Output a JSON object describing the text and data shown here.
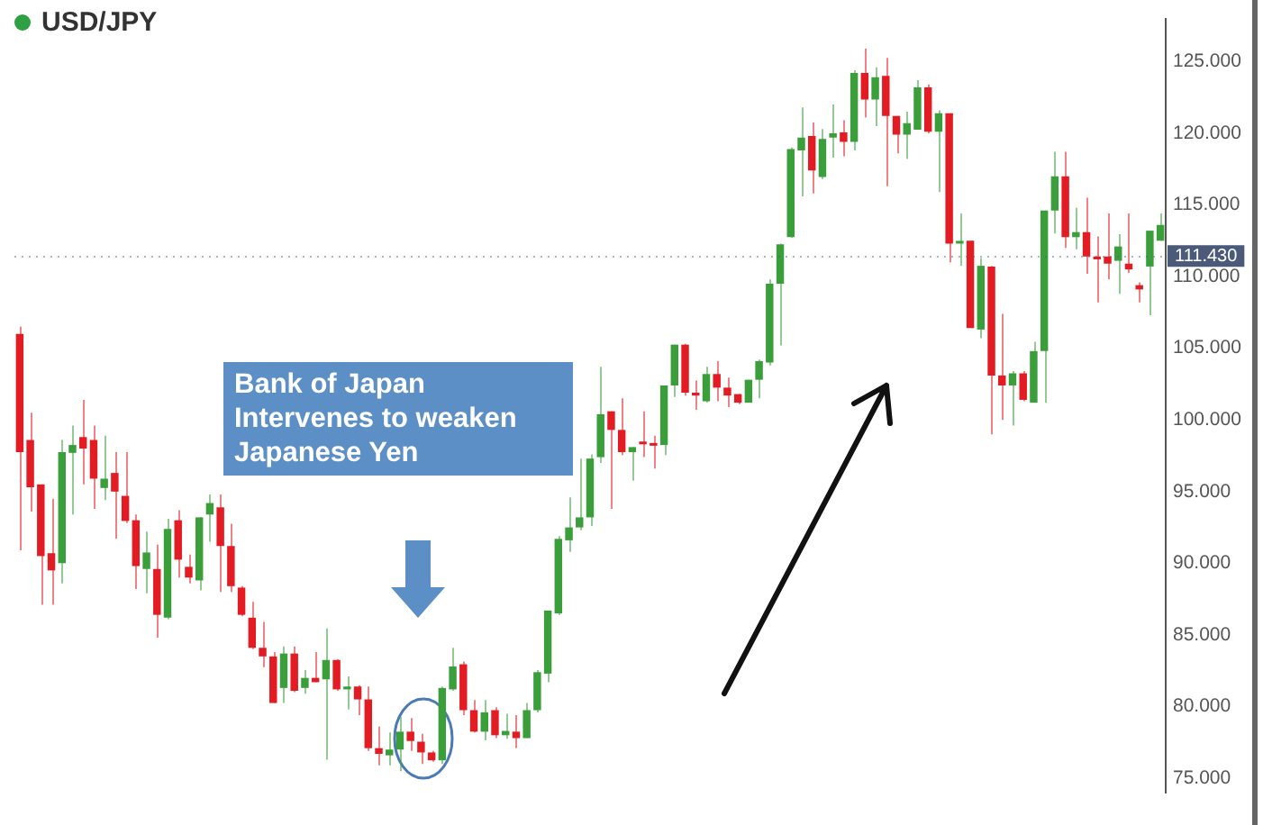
{
  "chart_data": {
    "type": "candlestick",
    "title": "USD/JPY",
    "annotations": [
      "Bank of Japan Intervenes to weaken Japanese Yen"
    ],
    "categories": [
      null,
      null,
      null,
      null,
      null,
      null,
      null,
      null,
      null,
      null,
      null,
      null,
      null,
      null,
      null,
      null,
      null,
      null,
      null,
      null,
      null,
      null,
      null,
      null,
      null,
      null,
      null,
      null,
      null,
      null,
      null,
      null,
      null,
      null,
      null,
      null,
      null,
      null,
      null,
      null,
      null,
      null,
      null,
      null,
      null,
      null,
      null,
      null,
      null,
      null,
      null,
      null,
      null,
      null,
      null,
      null,
      null,
      null,
      null,
      null,
      null,
      null,
      null,
      null,
      null,
      null,
      null,
      null,
      null,
      null,
      null,
      null,
      null,
      null,
      null,
      null,
      null,
      null,
      null,
      null,
      null,
      null,
      null,
      null,
      null,
      null,
      null,
      null,
      null,
      null,
      null,
      null,
      null,
      null,
      null,
      null,
      null,
      null,
      null,
      null,
      null,
      null,
      null,
      null,
      null,
      null,
      null,
      null,
      null
    ],
    "ohlc": [
      [
        106.0,
        106.5,
        90.9,
        97.75
      ],
      [
        98.6,
        100.5,
        93.6,
        95.3
      ],
      [
        95.5,
        95.5,
        87.1,
        90.5
      ],
      [
        90.7,
        94.5,
        87.1,
        89.5
      ],
      [
        90.0,
        98.6,
        88.6,
        97.75
      ],
      [
        97.7,
        99.6,
        93.4,
        98.25
      ],
      [
        98.8,
        101.4,
        95.5,
        98.0
      ],
      [
        98.6,
        99.6,
        93.8,
        95.9
      ],
      [
        95.25,
        98.9,
        94.4,
        95.9
      ],
      [
        96.3,
        97.75,
        91.7,
        95.0
      ],
      [
        94.7,
        97.75,
        92.8,
        92.95
      ],
      [
        93.0,
        93.4,
        88.2,
        89.8
      ],
      [
        89.6,
        92.2,
        87.9,
        90.75
      ],
      [
        89.6,
        91.3,
        84.8,
        86.4
      ],
      [
        86.2,
        93.1,
        86.1,
        92.4
      ],
      [
        93.0,
        93.7,
        89.0,
        90.25
      ],
      [
        89.75,
        90.6,
        88.6,
        89.0
      ],
      [
        88.8,
        93.2,
        88.1,
        93.2
      ],
      [
        93.4,
        94.8,
        91.5,
        94.2
      ],
      [
        93.9,
        94.8,
        88.0,
        91.2
      ],
      [
        91.2,
        92.75,
        88.0,
        88.4
      ],
      [
        88.3,
        88.4,
        86.3,
        86.4
      ],
      [
        86.2,
        87.3,
        84.0,
        84.1
      ],
      [
        84.1,
        85.9,
        82.75,
        83.5
      ],
      [
        83.5,
        83.8,
        80.25,
        80.25
      ],
      [
        81.3,
        84.2,
        80.25,
        83.7
      ],
      [
        83.7,
        84.2,
        81.0,
        81.1
      ],
      [
        81.3,
        82.55,
        80.9,
        82.0
      ],
      [
        82.0,
        83.8,
        81.7,
        81.7
      ],
      [
        81.9,
        85.45,
        76.3,
        83.25
      ],
      [
        83.25,
        83.3,
        81.1,
        81.2
      ],
      [
        81.2,
        82.1,
        79.8,
        81.4
      ],
      [
        81.4,
        81.5,
        79.4,
        80.5
      ],
      [
        80.5,
        81.4,
        76.9,
        77.1
      ],
      [
        77.1,
        78.6,
        75.9,
        76.7
      ],
      [
        76.6,
        78.2,
        75.9,
        77.0
      ],
      [
        77.0,
        79.3,
        75.5,
        78.25
      ],
      [
        78.25,
        79.2,
        76.9,
        77.6
      ],
      [
        77.55,
        78.1,
        76.0,
        76.8
      ],
      [
        76.8,
        76.9,
        76.15,
        76.25
      ],
      [
        76.25,
        81.4,
        76.0,
        81.3
      ],
      [
        81.2,
        84.1,
        81.1,
        82.8
      ],
      [
        82.95,
        83.15,
        79.4,
        79.75
      ],
      [
        79.75,
        80.45,
        78.2,
        78.25
      ],
      [
        78.25,
        80.45,
        77.65,
        79.6
      ],
      [
        79.75,
        79.95,
        77.8,
        78.0
      ],
      [
        78.0,
        79.5,
        77.75,
        78.3
      ],
      [
        78.25,
        79.4,
        77.1,
        77.8
      ],
      [
        77.8,
        80.25,
        77.8,
        79.75
      ],
      [
        79.75,
        82.55,
        79.6,
        82.4
      ],
      [
        82.3,
        86.7,
        81.7,
        86.7
      ],
      [
        86.5,
        91.9,
        86.4,
        91.7
      ],
      [
        91.6,
        94.6,
        90.8,
        92.5
      ],
      [
        92.5,
        97.3,
        92.3,
        93.2
      ],
      [
        93.2,
        97.6,
        92.6,
        97.3
      ],
      [
        97.4,
        103.7,
        97.0,
        100.4
      ],
      [
        100.6,
        100.6,
        93.8,
        99.3
      ],
      [
        99.3,
        101.5,
        97.55,
        97.75
      ],
      [
        97.75,
        98.1,
        95.75,
        98.1
      ],
      [
        98.4,
        100.6,
        97.4,
        98.3
      ],
      [
        98.35,
        98.9,
        96.6,
        98.2
      ],
      [
        98.25,
        102.4,
        97.55,
        102.4
      ],
      [
        102.4,
        105.25,
        101.6,
        105.25
      ],
      [
        105.25,
        105.3,
        101.7,
        101.9
      ],
      [
        101.9,
        102.75,
        100.7,
        101.7
      ],
      [
        101.3,
        103.7,
        101.2,
        103.2
      ],
      [
        103.2,
        104.1,
        101.3,
        102.25
      ],
      [
        102.25,
        102.95,
        100.9,
        101.7
      ],
      [
        101.8,
        101.8,
        101.1,
        101.2
      ],
      [
        101.2,
        102.8,
        101.2,
        102.8
      ],
      [
        102.8,
        104.2,
        101.5,
        104.1
      ],
      [
        104.0,
        109.8,
        103.8,
        109.5
      ],
      [
        109.5,
        112.3,
        105.2,
        112.25
      ],
      [
        112.75,
        119.0,
        112.7,
        118.9
      ],
      [
        118.8,
        121.8,
        115.6,
        119.7
      ],
      [
        119.8,
        120.75,
        115.8,
        117.4
      ],
      [
        116.95,
        120.3,
        116.8,
        119.6
      ],
      [
        119.7,
        122.0,
        118.3,
        120.0
      ],
      [
        120.05,
        120.9,
        118.4,
        119.4
      ],
      [
        119.4,
        124.4,
        118.8,
        124.2
      ],
      [
        124.2,
        125.9,
        121.1,
        122.35
      ],
      [
        122.35,
        124.6,
        120.5,
        123.9
      ],
      [
        124.0,
        125.25,
        116.3,
        121.2
      ],
      [
        121.2,
        121.2,
        118.6,
        119.9
      ],
      [
        119.9,
        121.5,
        118.2,
        120.7
      ],
      [
        120.25,
        123.7,
        120.25,
        123.2
      ],
      [
        123.2,
        123.4,
        120.0,
        120.1
      ],
      [
        120.1,
        121.6,
        115.9,
        121.4
      ],
      [
        121.4,
        121.4,
        111.0,
        112.3
      ],
      [
        112.3,
        114.4,
        110.75,
        112.45
      ],
      [
        112.5,
        112.5,
        106.4,
        106.4
      ],
      [
        106.3,
        111.3,
        105.7,
        110.75
      ],
      [
        110.7,
        110.75,
        99.0,
        103.1
      ],
      [
        103.1,
        107.4,
        100.0,
        102.4
      ],
      [
        102.4,
        103.4,
        99.6,
        103.25
      ],
      [
        103.25,
        103.4,
        101.3,
        101.4
      ],
      [
        101.2,
        105.45,
        101.2,
        104.8
      ],
      [
        104.8,
        114.6,
        101.2,
        114.6
      ],
      [
        114.6,
        118.7,
        113.0,
        117.0
      ],
      [
        117.0,
        118.7,
        112.0,
        112.75
      ],
      [
        112.75,
        114.8,
        111.9,
        113.1
      ],
      [
        113.1,
        115.5,
        110.2,
        111.4
      ],
      [
        111.4,
        112.8,
        108.2,
        111.2
      ],
      [
        111.4,
        114.4,
        109.8,
        110.9
      ],
      [
        111.1,
        112.95,
        108.8,
        112.1
      ],
      [
        110.9,
        114.4,
        110.25,
        110.5
      ],
      [
        109.4,
        109.6,
        108.2,
        109.1
      ],
      [
        110.7,
        113.2,
        107.3,
        113.2
      ],
      [
        112.5,
        114.4,
        112.5,
        113.6
      ]
    ],
    "ylim": [
      74,
      128
    ],
    "yticks": [
      {
        "value": 75,
        "label": "75.000"
      },
      {
        "value": 80,
        "label": "80.000"
      },
      {
        "value": 85,
        "label": "85.000"
      },
      {
        "value": 90,
        "label": "90.000"
      },
      {
        "value": 95,
        "label": "95.000"
      },
      {
        "value": 100,
        "label": "100.000"
      },
      {
        "value": 105,
        "label": "105.000"
      },
      {
        "value": 110,
        "label": "110.000"
      },
      {
        "value": 115,
        "label": "115.000"
      },
      {
        "value": 120,
        "label": "120.000"
      },
      {
        "value": 125,
        "label": "125.000"
      }
    ],
    "ref_lines": [
      {
        "axis": "y",
        "value": 111.43,
        "label": "111.430",
        "color": "#4a5a78",
        "line_style": "dotted"
      }
    ],
    "tick_labels": "y"
  }
}
